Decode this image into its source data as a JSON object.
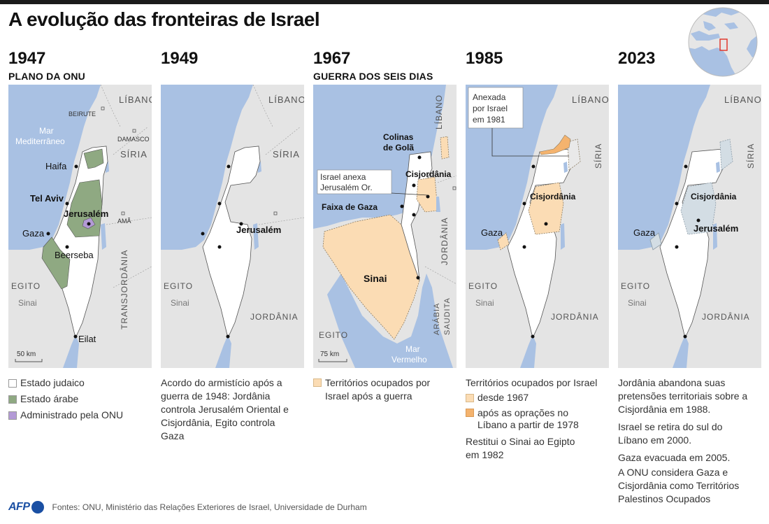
{
  "title": "A evolução das fronteiras de Israel",
  "footer": {
    "logo": "AFP",
    "sources": "Fontes: ONU, Ministério das Relações Exteriores de Israel, Universidade de  Durham"
  },
  "colors": {
    "sea": "#a9c1e3",
    "land": "#e4e4e4",
    "israel": "#ffffff",
    "arab_state": "#8fa982",
    "un_administered": "#b39ad6",
    "occupied_since_1967": "#fbdcb4",
    "occupied_since_1978": "#f4b36e",
    "west_bank_2023": "#d3dde4"
  },
  "panels": [
    {
      "year": "1947",
      "subtitle": "PLANO DA ONU",
      "labels": {
        "libano": "LÍBANO",
        "beirute": "BEIRUTE",
        "mar": "Mar",
        "mediterraneo": "Mediterrâneo",
        "damasco": "DAMASCO",
        "siria": "SÍRIA",
        "haifa": "Haifa",
        "telaviv": "Tel Aviv",
        "jerusalem": "Jerusalém",
        "gaza": "Gaza",
        "ama": "AMÃ",
        "beerseba": "Beerseba",
        "egito": "EGITO",
        "sinai": "Sinai",
        "transjordania": "TRANSJORDÂNIA",
        "eilat": "Eilat",
        "scale": "50 km"
      },
      "legend": [
        {
          "swatch": "israel",
          "label": "Estado judaico"
        },
        {
          "swatch": "arab_state",
          "label": "Estado árabe"
        },
        {
          "swatch": "un_administered",
          "label": "Administrado pela ONU"
        }
      ]
    },
    {
      "year": "1949",
      "subtitle": "",
      "labels": {
        "libano": "LÍBANO",
        "siria": "SÍRIA",
        "jerusalem": "Jerusalém",
        "egito": "EGITO",
        "sinai": "Sinai",
        "jordania": "JORDÂNIA"
      },
      "text": "Acordo do armistício após a guerra de 1948: Jordânia controla Jerusalém Oriental e Cisjordânia, Egito controla Gaza"
    },
    {
      "year": "1967",
      "subtitle": "GUERRA DOS SEIS DIAS",
      "labels": {
        "colinas": "Colinas",
        "degola": "de Golã",
        "libano": "LÍBANO",
        "cisjordania": "Cisjordânia",
        "anexa1": "Israel anexa",
        "anexa2": "Jerusalém Or.",
        "gaza": "Faixa de Gaza",
        "jordania": "JORDÂNIA",
        "sinai": "Sinai",
        "arabia1": "ARÁBIA",
        "arabia2": "SAUDITA",
        "egito": "EGITO",
        "mar": "Mar",
        "vermelho": "Vermelho",
        "scale": "75 km"
      },
      "legend": [
        {
          "swatch": "occupied_since_1967",
          "label": "Territórios ocupados por Israel após a guerra"
        }
      ]
    },
    {
      "year": "1985",
      "subtitle": "",
      "labels": {
        "anexada1": "Anexada",
        "anexada2": "por Israel",
        "anexada3": "em 1981",
        "libano": "LÍBANO",
        "siria": "SÍRIA",
        "cisjordania": "Cisjordânia",
        "gaza": "Gaza",
        "egito": "EGITO",
        "sinai": "Sinai",
        "jordania": "JORDÂNIA"
      },
      "legend_title": "Territórios ocupados por Israel",
      "legend": [
        {
          "swatch": "occupied_since_1967",
          "label": "desde 1967"
        },
        {
          "swatch": "occupied_since_1978",
          "label": "após as oprações no Líbano a partir de 1978"
        }
      ],
      "note": "Restitui o Sinai ao Egipto em 1982"
    },
    {
      "year": "2023",
      "subtitle": "",
      "labels": {
        "libano": "LÍBANO",
        "siria": "SÍRIA",
        "cisjordania": "Cisjordânia",
        "gaza": "Gaza",
        "jerusalem": "Jerusalém",
        "egito": "EGITO",
        "sinai": "Sinai",
        "jordania": "JORDÂNIA"
      },
      "notes": [
        "Jordânia abandona suas pretensões territoriais sobre a Cisjordânia em 1988.",
        "Israel se retira do sul do Líbano em 2000.",
        "Gaza evacuada em 2005.",
        "A ONU considera Gaza e Cisjordânia como Territórios Palestinos Ocupados"
      ]
    }
  ]
}
